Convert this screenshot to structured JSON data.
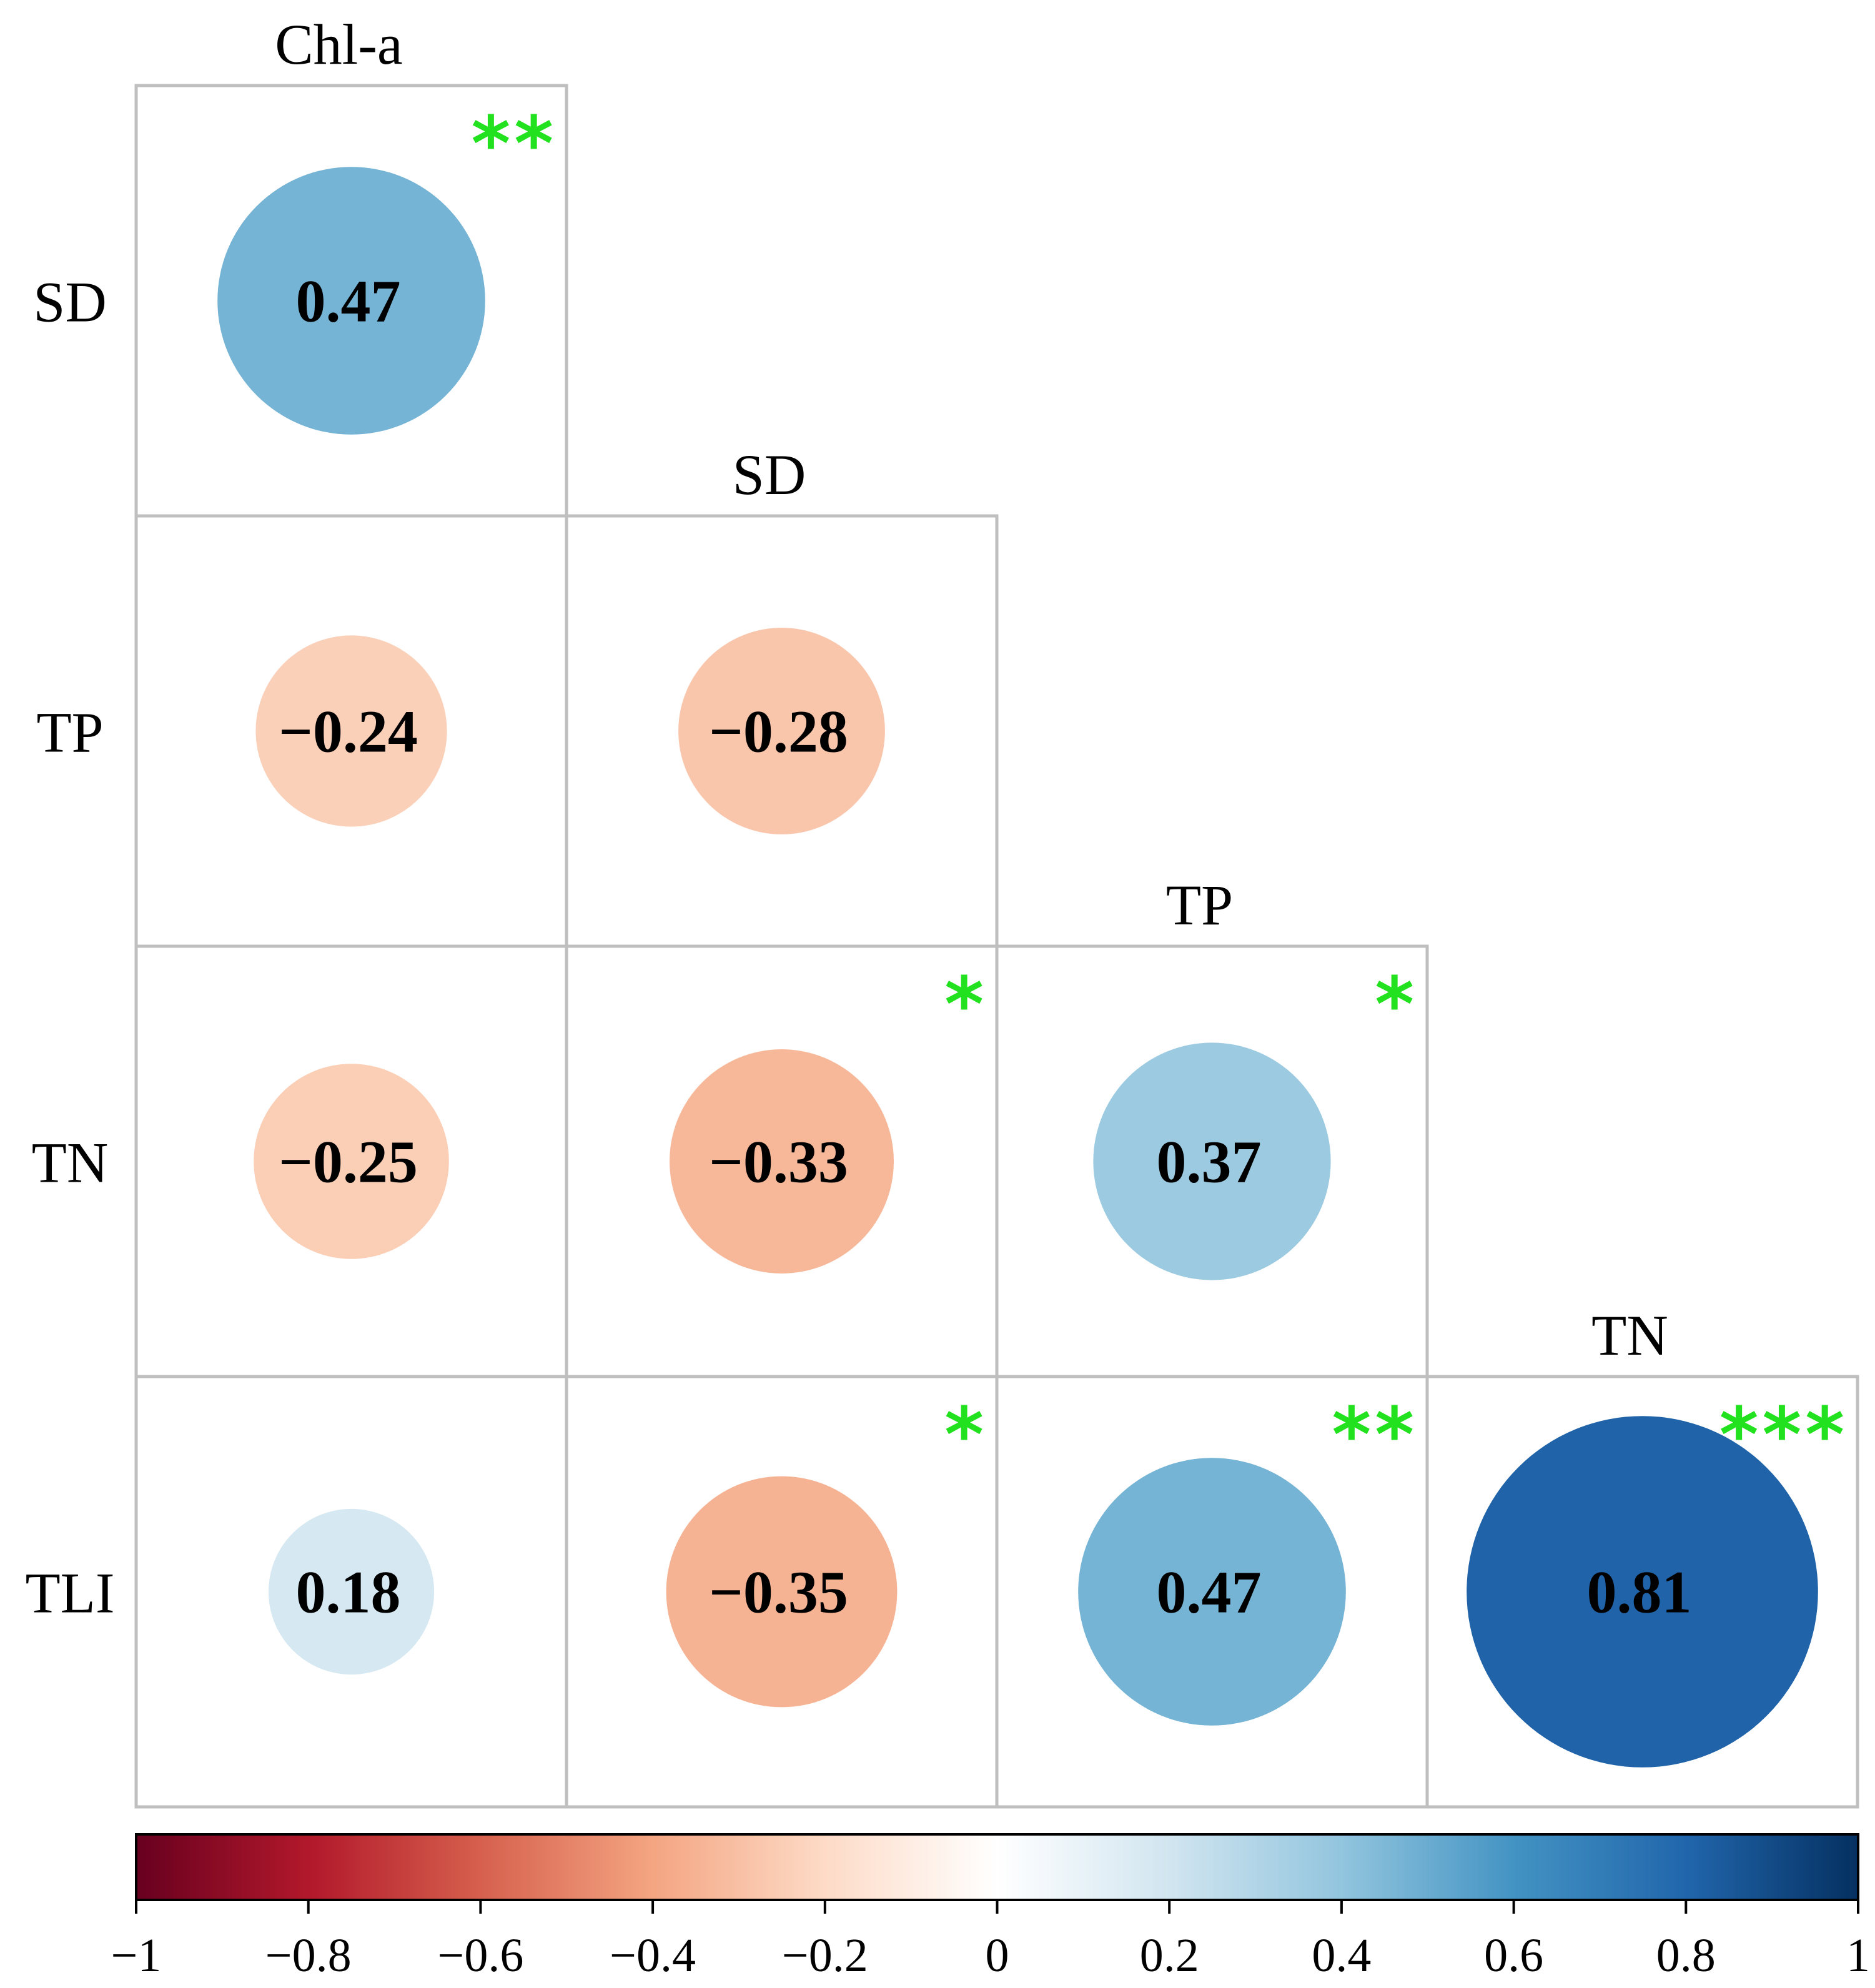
{
  "chart_data": {
    "type": "heatmap",
    "subtype": "correlation-circle-matrix (lower triangle)",
    "column_headers": [
      "Chl-a",
      "SD",
      "TP",
      "TN"
    ],
    "row_labels": [
      "SD",
      "TP",
      "TN",
      "TLI"
    ],
    "cells": [
      {
        "row": "SD",
        "col": "Chl-a",
        "value": 0.47,
        "label": "0.47",
        "significance": "**"
      },
      {
        "row": "TP",
        "col": "Chl-a",
        "value": -0.24,
        "label": "−0.24",
        "significance": ""
      },
      {
        "row": "TP",
        "col": "SD",
        "value": -0.28,
        "label": "−0.28",
        "significance": ""
      },
      {
        "row": "TN",
        "col": "Chl-a",
        "value": -0.25,
        "label": "−0.25",
        "significance": ""
      },
      {
        "row": "TN",
        "col": "SD",
        "value": -0.33,
        "label": "−0.33",
        "significance": "*"
      },
      {
        "row": "TN",
        "col": "TP",
        "value": 0.37,
        "label": "0.37",
        "significance": "*"
      },
      {
        "row": "TLI",
        "col": "Chl-a",
        "value": 0.18,
        "label": "0.18",
        "significance": ""
      },
      {
        "row": "TLI",
        "col": "SD",
        "value": -0.35,
        "label": "−0.35",
        "significance": "*"
      },
      {
        "row": "TLI",
        "col": "TP",
        "value": 0.47,
        "label": "0.47",
        "significance": "**"
      },
      {
        "row": "TLI",
        "col": "TN",
        "value": 0.81,
        "label": "0.81",
        "significance": "***"
      }
    ],
    "colorbar": {
      "range": [
        -1,
        1
      ],
      "ticks": [
        -1,
        -0.8,
        -0.6,
        -0.4,
        -0.2,
        0,
        0.2,
        0.4,
        0.6,
        0.8,
        1
      ],
      "tick_labels": [
        "−1",
        "−0.8",
        "−0.6",
        "−0.4",
        "−0.2",
        "0",
        "0.2",
        "0.4",
        "0.6",
        "0.8",
        "1"
      ],
      "colors": [
        "#67001f",
        "#b2182b",
        "#d6604d",
        "#f4a582",
        "#fddbc7",
        "#ffffff",
        "#d1e5f0",
        "#92c5de",
        "#4393c3",
        "#2166ac",
        "#053061"
      ]
    },
    "significance_color": "#22e11e"
  }
}
